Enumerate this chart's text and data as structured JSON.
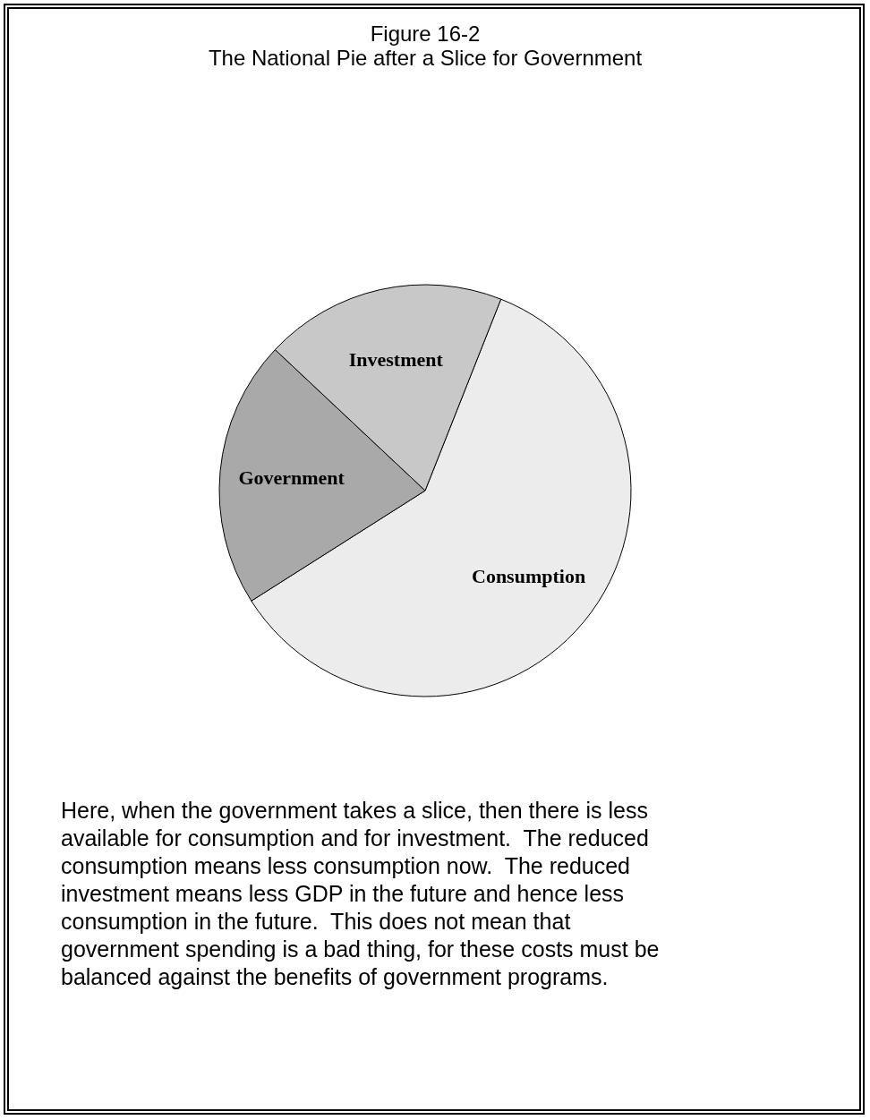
{
  "chart_data": {
    "type": "pie",
    "title": "Figure 16-2",
    "subtitle": "The National Pie after a Slice for Government",
    "categories": [
      "Consumption",
      "Government",
      "Investment"
    ],
    "values": [
      60,
      21,
      19
    ],
    "colors": [
      "#ececec",
      "#a9a9a9",
      "#c8c8c8"
    ],
    "annotations": [
      "Here, when the government takes a slice, then there is less available for consumption and for investment.  The reduced consumption means less consumption now.  The reduced investment means less GDP in the future and hence less consumption in the future.  This does not mean that government spending is a bad thing, for these costs must be balanced against the benefits of government programs."
    ]
  }
}
